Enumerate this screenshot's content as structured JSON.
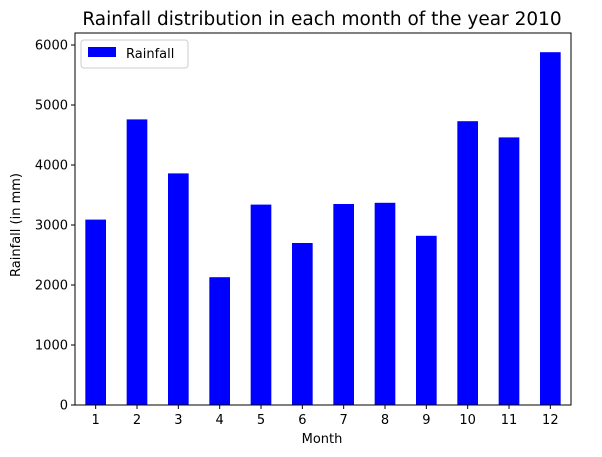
{
  "chart_data": {
    "type": "bar",
    "title": "Rainfall distribution in each month of the year 2010",
    "xlabel": "Month",
    "ylabel": "Rainfall (in mm)",
    "categories": [
      "1",
      "2",
      "3",
      "4",
      "5",
      "6",
      "7",
      "8",
      "9",
      "10",
      "11",
      "12"
    ],
    "series": [
      {
        "name": "Rainfall",
        "color": "#0000ff",
        "values": [
          3090,
          4760,
          3860,
          2130,
          3340,
          2700,
          3350,
          3370,
          2820,
          4730,
          4460,
          5880
        ]
      }
    ],
    "ylim": [
      0,
      6200
    ],
    "yticks": [
      0,
      1000,
      2000,
      3000,
      4000,
      5000,
      6000
    ],
    "grid": false,
    "legend_position": "top-left"
  }
}
